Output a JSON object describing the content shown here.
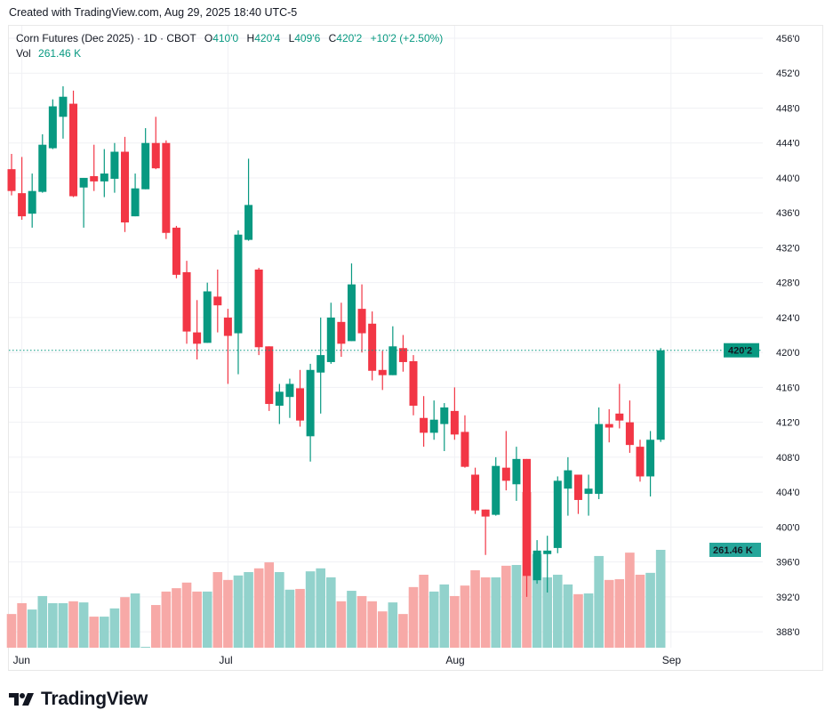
{
  "created_text": "Created with TradingView.com, Aug 29, 2025 18:40 UTC-5",
  "legend": {
    "symbol": "Corn Futures (Dec 2025) · 1D · CBOT",
    "o_label": "O",
    "o_value": "410'0",
    "h_label": "H",
    "h_value": "420'4",
    "l_label": "L",
    "l_value": "409'6",
    "c_label": "C",
    "c_value": "420'2",
    "change": "+10'2 (+2.50%)",
    "vol_label": "Vol",
    "vol_value": "261.46 K"
  },
  "logo_text": "TradingView",
  "colors": {
    "up": "#089981",
    "down": "#f23645",
    "up_vol": "#92d2cc",
    "down_vol": "#f7a9a7",
    "grid": "#f0f3fa",
    "last_price": "#089981",
    "vol_badge": "#26a69a"
  },
  "chart_data": {
    "type": "candlestick",
    "title": "Corn Futures (Dec 2025) · 1D · CBOT",
    "y_ticks": [
      "456'0",
      "452'0",
      "448'0",
      "444'0",
      "440'0",
      "436'0",
      "432'0",
      "428'0",
      "424'0",
      "420'0",
      "416'0",
      "412'0",
      "408'0",
      "404'0",
      "400'0",
      "396'0",
      "392'0",
      "388'0"
    ],
    "y_tick_values": [
      456,
      452,
      448,
      444,
      440,
      436,
      432,
      428,
      424,
      420,
      416,
      412,
      408,
      404,
      400,
      396,
      392,
      388
    ],
    "x_ticks": [
      {
        "label": "Jun",
        "index": 1
      },
      {
        "label": "Jul",
        "index": 21
      },
      {
        "label": "Aug",
        "index": 43
      },
      {
        "label": "Sep",
        "index": 64
      }
    ],
    "last_price": 420.25,
    "last_price_label": "420'2",
    "last_volume_label": "261.46 K",
    "volume_unit": "K",
    "candles": [
      [
        441,
        442.75,
        438,
        438.5
      ],
      [
        438.25,
        442.4,
        435.2,
        435.6
      ],
      [
        435.9,
        440.5,
        434.3,
        438.5
      ],
      [
        438.4,
        445,
        438.3,
        443.8
      ],
      [
        443.4,
        449,
        443.3,
        448.2
      ],
      [
        447,
        450.5,
        444.5,
        449.3
      ],
      [
        448.5,
        450,
        437.8,
        437.9
      ],
      [
        438.9,
        440,
        434.3,
        440
      ],
      [
        440.2,
        443.8,
        438.5,
        439.6
      ],
      [
        439.6,
        443.3,
        437.8,
        440.5
      ],
      [
        439.9,
        444,
        438.3,
        443
      ],
      [
        443,
        444.7,
        433.8,
        434.9
      ],
      [
        435.6,
        440.5,
        435.6,
        438.8
      ],
      [
        438.7,
        445.7,
        438.7,
        444
      ],
      [
        444,
        447,
        441,
        441.1
      ],
      [
        444,
        444.3,
        433,
        433.7
      ],
      [
        434.3,
        434.5,
        428.5,
        428.9
      ],
      [
        429.2,
        430.5,
        421,
        422.4
      ],
      [
        422.3,
        426,
        419.2,
        421
      ],
      [
        421.1,
        428,
        421.1,
        427
      ],
      [
        426.4,
        429.5,
        422.3,
        425.4
      ],
      [
        424,
        425,
        416.4,
        421.9
      ],
      [
        422.2,
        434,
        417.5,
        433.5
      ],
      [
        432.9,
        442.2,
        432.8,
        436.9
      ],
      [
        429.5,
        429.7,
        419.7,
        420.6
      ],
      [
        420.7,
        420.7,
        413.3,
        414.1
      ],
      [
        413.9,
        416.4,
        411.8,
        415.5
      ],
      [
        414.9,
        417,
        412.5,
        416.4
      ],
      [
        415.9,
        418,
        411.5,
        412.2
      ],
      [
        410.4,
        418.7,
        407.5,
        418
      ],
      [
        417.7,
        424,
        413,
        419.7
      ],
      [
        418.9,
        425.7,
        418.7,
        424
      ],
      [
        423.5,
        425.7,
        419.5,
        421
      ],
      [
        421.3,
        430.2,
        421.3,
        427.8
      ],
      [
        425,
        427.8,
        420,
        422.2
      ],
      [
        423.3,
        424.7,
        416.8,
        417.9
      ],
      [
        418,
        420.2,
        415.7,
        417.4
      ],
      [
        417.4,
        423,
        417.4,
        420.7
      ],
      [
        420.5,
        422,
        417.8,
        418.9
      ],
      [
        419,
        419.7,
        412.8,
        413.9
      ],
      [
        412.5,
        415,
        409.2,
        410.8
      ],
      [
        410.8,
        414.5,
        410,
        412.3
      ],
      [
        411.8,
        414.2,
        408.7,
        413.7
      ],
      [
        413.3,
        416,
        410,
        410.6
      ],
      [
        410.9,
        412.8,
        406.8,
        406.9
      ],
      [
        406,
        406.8,
        401.5,
        401.9
      ],
      [
        402,
        402,
        396.8,
        401.2
      ],
      [
        401.4,
        408,
        401.3,
        407
      ],
      [
        406.8,
        411,
        404.2,
        405.3
      ],
      [
        404.9,
        409.2,
        403,
        407.8
      ],
      [
        407.8,
        407.8,
        392,
        394.4
      ],
      [
        393.9,
        398.5,
        393.5,
        397.3
      ],
      [
        396.9,
        399,
        392.5,
        397.3
      ],
      [
        397.6,
        405.8,
        397,
        405.3
      ],
      [
        404.4,
        408,
        401.3,
        406.5
      ],
      [
        406,
        406,
        401.5,
        403.1
      ],
      [
        403.8,
        406,
        401.3,
        404.4
      ],
      [
        403.8,
        413.7,
        403.2,
        411.8
      ],
      [
        411.8,
        413.5,
        409.7,
        411.4
      ],
      [
        413,
        416.4,
        411.3,
        412.2
      ],
      [
        412,
        414.5,
        408.5,
        409.4
      ],
      [
        409.2,
        410,
        405.2,
        405.8
      ],
      [
        405.8,
        411,
        403.5,
        410
      ],
      [
        410,
        420.5,
        409.75,
        420.25
      ]
    ],
    "volume": [
      90,
      119,
      102,
      138,
      119,
      119,
      124,
      121,
      83,
      83,
      105,
      135,
      145,
      2,
      114,
      150,
      159,
      174,
      150,
      150,
      202,
      181,
      193,
      202,
      212,
      228,
      202,
      155,
      157,
      204,
      212,
      188,
      124,
      152,
      138,
      124,
      97,
      121,
      90,
      162,
      195,
      150,
      169,
      138,
      166,
      207,
      188,
      188,
      219,
      221,
      416,
      250,
      188,
      195,
      169,
      143,
      145,
      245,
      181,
      183,
      254,
      195,
      200,
      261.46
    ]
  }
}
